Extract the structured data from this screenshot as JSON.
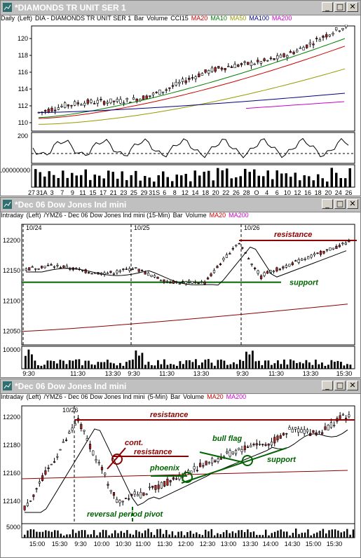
{
  "windows": [
    {
      "title": "*DIAMONDS TR UNIT SER 1",
      "bar": [
        "Daily",
        "(Left)",
        "DIA - DIAMONDS TR UNIT SER 1",
        "Bar",
        "Volume",
        "CCI15",
        "MA20",
        "MA10",
        "MA50",
        "MA100",
        "MA200"
      ],
      "price_ticks": [
        "120",
        "118",
        "116",
        "114",
        "112",
        "110"
      ],
      "cci_ticks": [
        "200"
      ],
      "vol_ticks": [
        "100000000"
      ],
      "x_ticks": [
        "27",
        "31A",
        "3",
        "7",
        "9",
        "11",
        "15",
        "17",
        "21",
        "23",
        "25",
        "29",
        "31S",
        "6",
        "8",
        "12",
        "14",
        "18",
        "20",
        "22",
        "26",
        "28",
        "O",
        "4",
        "6",
        "10",
        "12",
        "16",
        "18",
        "20",
        "24",
        "26"
      ]
    },
    {
      "title": "*Dec 06  Dow Jones Ind mini",
      "bar": [
        "Intraday",
        "(Left)",
        "/YMZ6 - Dec 06  Dow Jones Ind mini (15-Min)",
        "Bar",
        "Volume",
        "MA20",
        "MA200"
      ],
      "date_markers": [
        "10/24",
        "10/25",
        "10/26"
      ],
      "price_ticks": [
        "12200",
        "12150",
        "12100",
        "12050"
      ],
      "vol_ticks": [
        "10000"
      ],
      "x_ticks": [
        "9:30",
        "11:30",
        "13:30",
        "9:30",
        "11:30",
        "13:30",
        "9:30",
        "11:30",
        "13:30",
        "15:30"
      ],
      "annotations": {
        "resistance": "resistance",
        "support": "support"
      }
    },
    {
      "title": "*Dec 06  Dow Jones Ind mini",
      "bar": [
        "Intraday",
        "(Left)",
        "/YMZ6 - Dec 06  Dow Jones Ind mini",
        "(5-Min)",
        "Bar",
        "Volume",
        "MA20",
        "MA200"
      ],
      "date_markers": [
        "10/26"
      ],
      "price_ticks": [
        "12200",
        "12180",
        "12160",
        "12140"
      ],
      "vol_ticks": [
        "5000"
      ],
      "x_ticks": [
        "15:00",
        "15:30",
        "9:30",
        "10:00",
        "10:30",
        "11:00",
        "11:30",
        "12:00",
        "12:30",
        "13:00",
        "13:30",
        "14:00",
        "14:30",
        "15:00",
        "15:30"
      ],
      "annotations": {
        "resistance_top": "resistance",
        "cont": "cont.",
        "resistance_mid": "resistance",
        "bull_flag": "bull flag",
        "support": "support",
        "phoenix": "phoenix",
        "pivot": "reversal period pivot"
      }
    }
  ],
  "colors": {
    "ma20": "#cc0000",
    "ma10": "#008000",
    "ma50": "#999900",
    "ma100": "#000080",
    "ma200": "#cc00cc",
    "resistance": "#8b0000",
    "support": "#006400",
    "titlebar_text": "#ffffff"
  }
}
